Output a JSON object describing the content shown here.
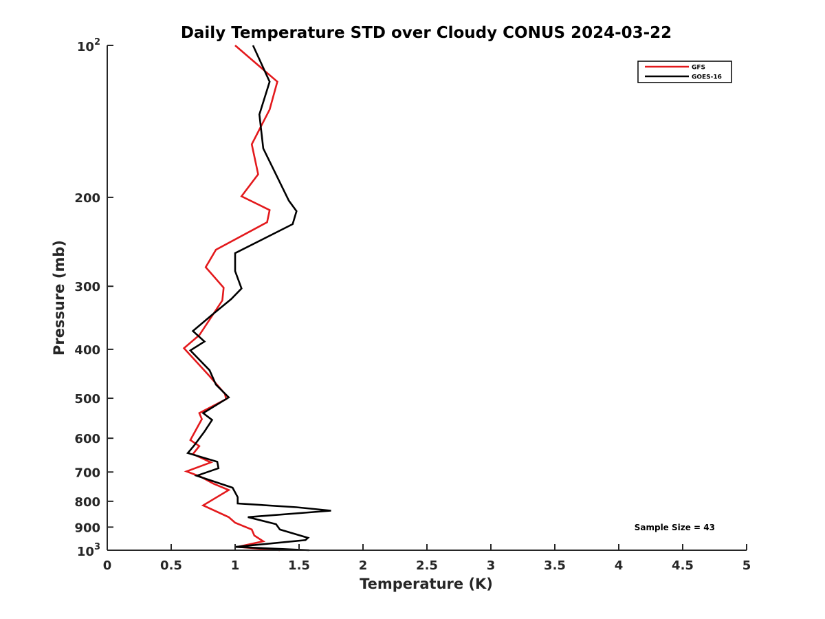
{
  "chart_data": {
    "type": "line",
    "title": "Daily Temperature STD over Cloudy CONUS 2024-03-22",
    "xlabel": "Temperature (K)",
    "ylabel": "Pressure (mb)",
    "xlim": [
      0,
      5
    ],
    "ylim": [
      100,
      1000
    ],
    "yscale": "log",
    "yreversed": true,
    "grid": false,
    "legend_position": "top-right",
    "x_ticks": [
      0,
      0.5,
      1,
      1.5,
      2,
      2.5,
      3,
      3.5,
      4,
      4.5,
      5
    ],
    "x_tick_labels": [
      "0",
      "0.5",
      "1",
      "1.5",
      "2",
      "2.5",
      "3",
      "3.5",
      "4",
      "4.5",
      "5"
    ],
    "y_ticks": [
      {
        "value": 100,
        "base": "10",
        "exp": "2",
        "label": ""
      },
      {
        "value": 200,
        "label": "200"
      },
      {
        "value": 300,
        "label": "300"
      },
      {
        "value": 400,
        "label": "400"
      },
      {
        "value": 500,
        "label": "500"
      },
      {
        "value": 600,
        "label": "600"
      },
      {
        "value": 700,
        "label": "700"
      },
      {
        "value": 800,
        "label": "800"
      },
      {
        "value": 900,
        "label": "900"
      },
      {
        "value": 1000,
        "base": "10",
        "exp": "3",
        "label": ""
      }
    ],
    "annotation": "Sample Size = 43",
    "series": [
      {
        "name": "GFS",
        "color": "#e3191c",
        "points": [
          [
            1.35,
            1000
          ],
          [
            1.02,
            985
          ],
          [
            1.22,
            960
          ],
          [
            1.15,
            935
          ],
          [
            1.13,
            910
          ],
          [
            1.0,
            882
          ],
          [
            0.95,
            860
          ],
          [
            0.75,
            815
          ],
          [
            0.95,
            760
          ],
          [
            0.83,
            738
          ],
          [
            0.73,
            715
          ],
          [
            0.62,
            698
          ],
          [
            0.81,
            670
          ],
          [
            0.67,
            645
          ],
          [
            0.72,
            622
          ],
          [
            0.65,
            605
          ],
          [
            0.74,
            550
          ],
          [
            0.72,
            535
          ],
          [
            0.93,
            502
          ],
          [
            0.92,
            490
          ],
          [
            0.8,
            452
          ],
          [
            0.6,
            398
          ],
          [
            0.72,
            375
          ],
          [
            0.9,
            320
          ],
          [
            0.91,
            302
          ],
          [
            0.77,
            275
          ],
          [
            0.85,
            254
          ],
          [
            1.25,
            224
          ],
          [
            1.27,
            212
          ],
          [
            1.05,
            199
          ],
          [
            1.18,
            180
          ],
          [
            1.13,
            157
          ],
          [
            1.27,
            134
          ],
          [
            1.33,
            118
          ],
          [
            1.0,
            100
          ]
        ]
      },
      {
        "name": "GOES-16",
        "color": "#000000",
        "points": [
          [
            1.58,
            1000
          ],
          [
            1.0,
            985
          ],
          [
            1.55,
            955
          ],
          [
            1.57,
            945
          ],
          [
            1.35,
            910
          ],
          [
            1.32,
            888
          ],
          [
            1.1,
            860
          ],
          [
            1.75,
            835
          ],
          [
            1.48,
            822
          ],
          [
            1.02,
            808
          ],
          [
            1.02,
            785
          ],
          [
            0.98,
            752
          ],
          [
            0.7,
            712
          ],
          [
            0.87,
            688
          ],
          [
            0.86,
            668
          ],
          [
            0.63,
            642
          ],
          [
            0.68,
            620
          ],
          [
            0.76,
            582
          ],
          [
            0.82,
            552
          ],
          [
            0.75,
            535
          ],
          [
            0.95,
            498
          ],
          [
            0.85,
            470
          ],
          [
            0.8,
            440
          ],
          [
            0.65,
            402
          ],
          [
            0.76,
            386
          ],
          [
            0.67,
            368
          ],
          [
            0.83,
            340
          ],
          [
            0.97,
            318
          ],
          [
            1.05,
            303
          ],
          [
            1.0,
            280
          ],
          [
            1.0,
            258
          ],
          [
            1.45,
            226
          ],
          [
            1.48,
            213
          ],
          [
            1.42,
            203
          ],
          [
            1.22,
            160
          ],
          [
            1.19,
            137
          ],
          [
            1.27,
            118
          ],
          [
            1.14,
            100
          ]
        ]
      }
    ]
  }
}
